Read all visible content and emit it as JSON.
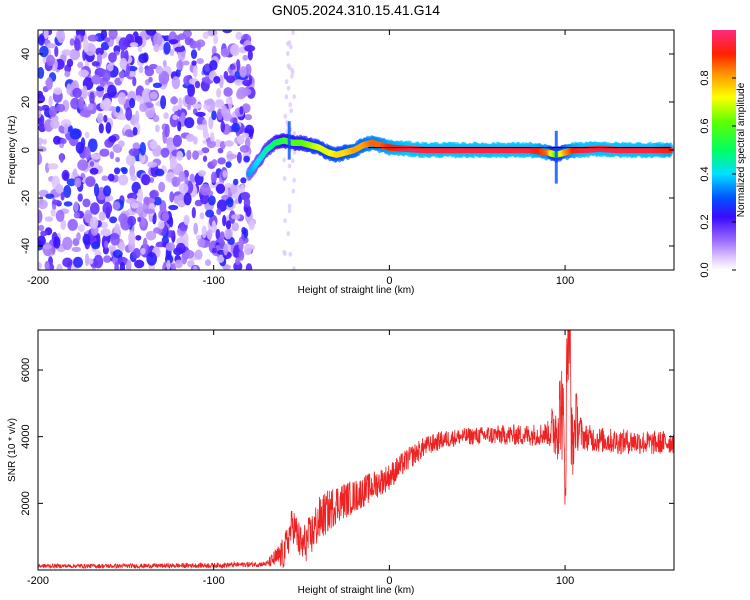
{
  "title": "GN05.2024.310.15.41.G14",
  "colors": {
    "snr_line": "#ee2222",
    "frequency_ridge": "#000000",
    "axis": "#000000",
    "background": "#ffffff"
  },
  "chart_data": [
    {
      "type": "heatmap",
      "panel": "top",
      "xlabel": "Height of straight line (km)",
      "ylabel": "Frequency (Hz)",
      "xlim": [
        -200,
        162
      ],
      "ylim": [
        -50,
        50
      ],
      "x_ticks": [
        -200,
        -100,
        0,
        100
      ],
      "x_tick_labels": [
        "-200",
        "-100",
        "0",
        "100"
      ],
      "y_ticks": [
        -40,
        -20,
        0,
        20,
        40
      ],
      "y_tick_labels": [
        "-40",
        "-20",
        "0",
        "20",
        "40"
      ],
      "colorbar": {
        "label": "Normalized spectral amplitude",
        "range": [
          0,
          1
        ],
        "ticks": [
          0.0,
          0.2,
          0.4,
          0.6,
          0.8
        ],
        "tick_labels": [
          "0.0",
          "0.2",
          "0.4",
          "0.6",
          "0.8"
        ],
        "colormap": "rainbow-white-to-pink"
      },
      "noise_region_x": [
        -200,
        -78
      ],
      "ridge": {
        "x": [
          -80,
          -75,
          -70,
          -65,
          -60,
          -55,
          -50,
          -45,
          -40,
          -35,
          -30,
          -25,
          -20,
          -15,
          -10,
          -5,
          0,
          10,
          20,
          30,
          40,
          50,
          60,
          70,
          80,
          90,
          95,
          100,
          105,
          110,
          120,
          130,
          140,
          150,
          160
        ],
        "y": [
          -10,
          -5,
          0,
          3,
          4,
          3,
          3,
          2,
          1,
          -1,
          -2,
          -1,
          0,
          2,
          3,
          2,
          1,
          0.5,
          0,
          0,
          0,
          0,
          0,
          0,
          0,
          -1,
          -2,
          -1,
          0,
          0,
          0.5,
          0,
          0,
          0,
          0
        ],
        "amplitude": [
          0.35,
          0.4,
          0.45,
          0.5,
          0.55,
          0.6,
          0.6,
          0.65,
          0.7,
          0.7,
          0.75,
          0.75,
          0.8,
          0.8,
          0.85,
          0.85,
          0.9,
          0.95,
          0.95,
          0.95,
          0.95,
          0.95,
          0.95,
          0.95,
          0.95,
          0.85,
          0.6,
          0.8,
          0.9,
          0.95,
          0.95,
          0.95,
          0.95,
          0.95,
          0.9
        ]
      },
      "ridge_line": {
        "x_start": -12,
        "x_end": 160,
        "y": 1
      },
      "spike": {
        "x": [
          -57,
          95
        ],
        "y_range": [
          [
            -4,
            12
          ],
          [
            -14,
            8
          ]
        ]
      }
    },
    {
      "type": "line",
      "panel": "bottom",
      "xlabel": "Height of straight line (km)",
      "ylabel": "SNR (10 * v/v)",
      "xlim": [
        -200,
        162
      ],
      "ylim": [
        0,
        7200
      ],
      "x_ticks": [
        -200,
        -100,
        0,
        100
      ],
      "x_tick_labels": [
        "-200",
        "-100",
        "0",
        "100"
      ],
      "y_ticks": [
        2000,
        4000,
        6000
      ],
      "y_tick_labels": [
        "2000",
        "4000",
        "6000"
      ],
      "envelope": {
        "x": [
          -200,
          -150,
          -100,
          -70,
          -60,
          -55,
          -50,
          -45,
          -40,
          -30,
          -20,
          -10,
          0,
          10,
          20,
          30,
          40,
          60,
          80,
          90,
          95,
          98,
          100,
          102,
          104,
          106,
          110,
          120,
          130,
          140,
          150,
          162
        ],
        "y": [
          120,
          120,
          140,
          180,
          500,
          1400,
          700,
          1000,
          1500,
          2000,
          2200,
          2500,
          2800,
          3300,
          3700,
          3900,
          4000,
          4050,
          4050,
          4100,
          4300,
          5000,
          3000,
          7200,
          3500,
          4500,
          4000,
          3900,
          3850,
          3850,
          3800,
          3850
        ]
      },
      "noise_amplitude": {
        "x": [
          -200,
          -70,
          -60,
          -40,
          -20,
          0,
          20,
          40,
          90,
          100,
          110,
          162
        ],
        "y": [
          60,
          80,
          500,
          700,
          500,
          400,
          300,
          250,
          350,
          1800,
          400,
          350
        ]
      }
    }
  ]
}
